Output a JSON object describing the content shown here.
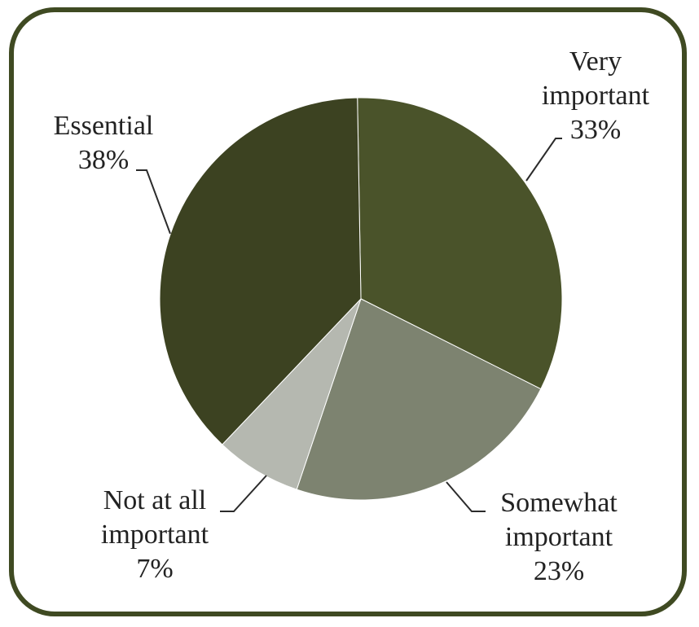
{
  "chart_data": {
    "type": "pie",
    "title": "",
    "legend": "none",
    "start_angle_deg": -1,
    "direction": "clockwise",
    "slices": [
      {
        "name": "Very important",
        "label_lines": [
          "Very",
          "important",
          "33%"
        ],
        "value": 33,
        "color": "#4a532a"
      },
      {
        "name": "Somewhat important",
        "label_lines": [
          "Somewhat",
          "important",
          "23%"
        ],
        "value": 23,
        "color": "#7d8370"
      },
      {
        "name": "Not at all important",
        "label_lines": [
          "Not at all",
          "important",
          "7%"
        ],
        "value": 7,
        "color": "#b5b8b0"
      },
      {
        "name": "Essential",
        "label_lines": [
          "Essential",
          "38%"
        ],
        "value": 38,
        "color": "#3c4221"
      }
    ]
  },
  "colors": {
    "frame_border": "#3f4a22",
    "slice_separator": "#ffffff"
  }
}
